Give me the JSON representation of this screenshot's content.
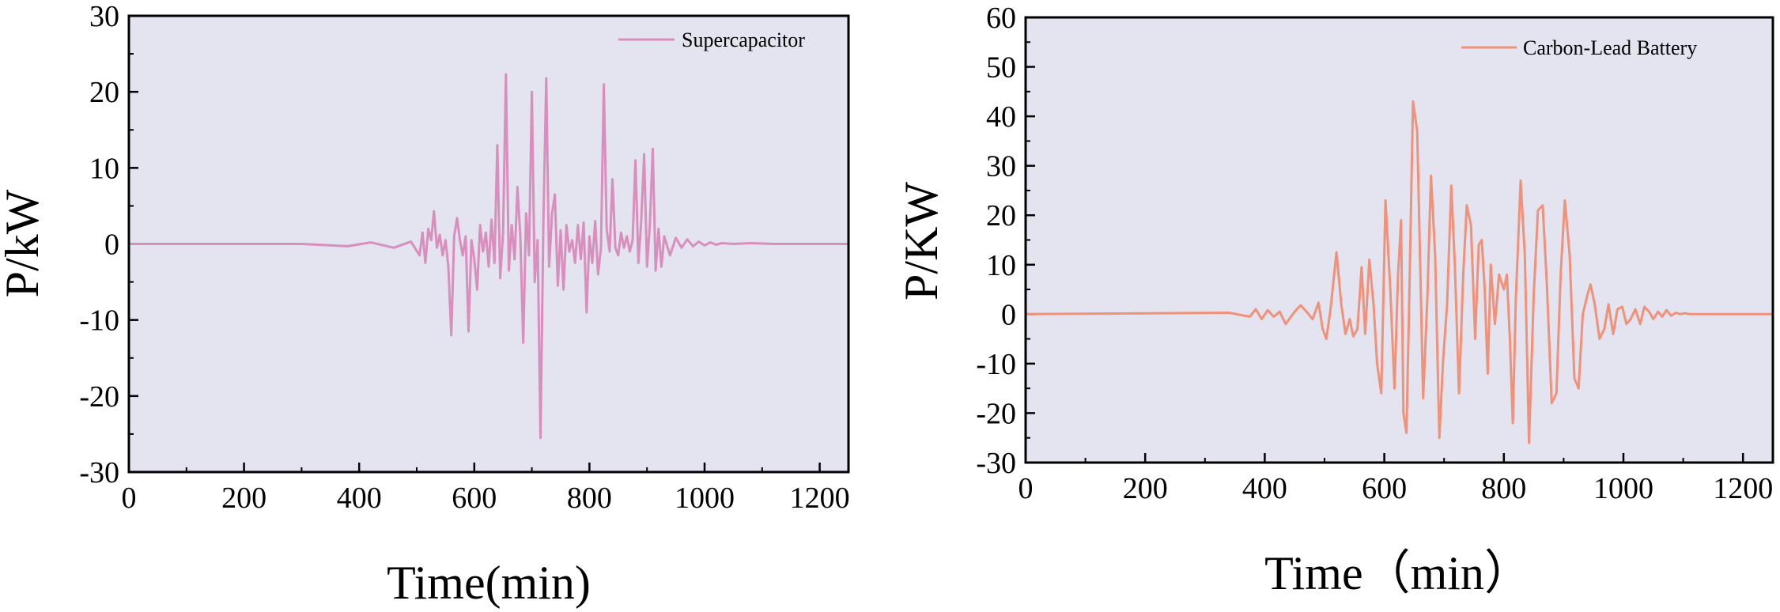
{
  "chart_data": [
    {
      "type": "line",
      "xlabel": "Time(min)",
      "ylabel": "P/kW",
      "xlim": [
        0,
        1250
      ],
      "ylim": [
        -30,
        30
      ],
      "xticks": [
        0,
        200,
        400,
        600,
        800,
        1000,
        1200
      ],
      "yticks": [
        -30,
        -20,
        -10,
        0,
        10,
        20,
        30
      ],
      "background": "#e3e4f0",
      "series": [
        {
          "name": "Supercapacitor",
          "color": "#d98fbd",
          "x": [
            0,
            300,
            380,
            420,
            460,
            490,
            505,
            510,
            515,
            520,
            525,
            530,
            535,
            540,
            545,
            550,
            555,
            560,
            565,
            570,
            575,
            580,
            585,
            590,
            595,
            600,
            605,
            610,
            615,
            620,
            625,
            630,
            635,
            640,
            645,
            650,
            655,
            660,
            665,
            670,
            675,
            680,
            685,
            690,
            695,
            700,
            705,
            710,
            715,
            720,
            725,
            730,
            735,
            740,
            745,
            750,
            755,
            760,
            765,
            770,
            775,
            780,
            785,
            790,
            795,
            800,
            805,
            810,
            815,
            820,
            825,
            830,
            835,
            840,
            845,
            850,
            855,
            860,
            865,
            870,
            875,
            880,
            885,
            890,
            895,
            900,
            905,
            910,
            915,
            920,
            925,
            930,
            940,
            950,
            960,
            970,
            980,
            990,
            1000,
            1010,
            1020,
            1030,
            1050,
            1080,
            1120,
            1160,
            1200,
            1250
          ],
          "y": [
            0,
            0,
            -0.3,
            0.2,
            -0.5,
            0.3,
            -1.5,
            1.5,
            -2.5,
            2,
            0.5,
            4.3,
            -0.5,
            1.2,
            -1.5,
            0.5,
            -3,
            -12,
            1,
            3.4,
            0.5,
            -1.5,
            1,
            -11.5,
            0.5,
            -2,
            -6,
            2.5,
            -1,
            1.5,
            -3,
            3.2,
            -2.5,
            13,
            -4.5,
            1.5,
            22.3,
            -3.5,
            2.5,
            -2,
            7.5,
            1,
            -13,
            4,
            -1.5,
            20,
            -5,
            0.5,
            -25.5,
            3,
            21.8,
            -3,
            4,
            6.5,
            -5.5,
            1.8,
            -6,
            2.5,
            -1,
            0.5,
            -2.5,
            2.5,
            -2,
            2.8,
            -9,
            1,
            -2.5,
            3,
            -4,
            -0.5,
            21,
            2,
            -1,
            8.5,
            -0.5,
            -1.5,
            1.5,
            -0.5,
            1,
            -1,
            0.5,
            11,
            -2.5,
            3,
            11.8,
            -3,
            2.5,
            12.5,
            -3.5,
            2,
            -3,
            1,
            -1.5,
            0.8,
            -0.5,
            0.6,
            -0.3,
            0.3,
            -0.2,
            0.2,
            -0.1,
            0.1,
            0,
            0.1,
            0,
            0,
            0,
            0
          ]
        }
      ]
    },
    {
      "type": "line",
      "xlabel": "Time（min）",
      "ylabel": "P/KW",
      "xlim": [
        0,
        1250
      ],
      "ylim": [
        -30,
        60
      ],
      "xticks": [
        0,
        200,
        400,
        600,
        800,
        1000,
        1200
      ],
      "yticks": [
        -30,
        -20,
        -10,
        0,
        10,
        20,
        30,
        40,
        50,
        60
      ],
      "background": "#e3e4f0",
      "series": [
        {
          "name": "Carbon-Lead Battery",
          "color": "#f0917a",
          "x": [
            0,
            340,
            375,
            385,
            395,
            405,
            415,
            425,
            435,
            450,
            460,
            470,
            480,
            490,
            497,
            503,
            510,
            520,
            528,
            535,
            542,
            548,
            555,
            562,
            568,
            575,
            582,
            588,
            595,
            602,
            610,
            617,
            623,
            628,
            632,
            637,
            642,
            648,
            655,
            660,
            665,
            672,
            678,
            685,
            692,
            698,
            705,
            712,
            718,
            725,
            732,
            738,
            745,
            752,
            758,
            763,
            768,
            773,
            778,
            785,
            792,
            800,
            805,
            810,
            815,
            820,
            828,
            835,
            842,
            850,
            857,
            865,
            872,
            880,
            888,
            895,
            902,
            910,
            918,
            925,
            932,
            940,
            945,
            952,
            960,
            968,
            975,
            983,
            990,
            998,
            1005,
            1012,
            1020,
            1028,
            1035,
            1043,
            1050,
            1058,
            1065,
            1072,
            1080,
            1088,
            1095,
            1103,
            1110,
            1120,
            1130,
            1150,
            1200,
            1250
          ],
          "y": [
            0,
            0.3,
            -0.5,
            1,
            -1,
            0.8,
            -0.5,
            0.5,
            -2,
            0.5,
            1.8,
            0.5,
            -1,
            2.3,
            -3,
            -5,
            1,
            12.5,
            2,
            -4,
            -1,
            -4.5,
            -3,
            9.5,
            -4,
            11,
            2,
            -10,
            -16,
            23,
            5,
            -15,
            8,
            19,
            -20,
            -24,
            5,
            43,
            37,
            10,
            -17,
            3,
            28,
            12,
            -25,
            -10,
            2,
            26,
            10,
            -16,
            8,
            22,
            18,
            -5,
            14,
            15,
            5,
            -12,
            10,
            -2,
            8,
            5,
            8,
            -5,
            -22,
            3,
            27,
            12,
            -26,
            4,
            21,
            22,
            6,
            -18,
            -16,
            8,
            23,
            12,
            -13,
            -15,
            0,
            4,
            6,
            2,
            -5,
            -3,
            2,
            -4,
            1,
            1.5,
            -2,
            -1,
            1,
            -2,
            1.5,
            0.5,
            -1,
            0.5,
            -0.5,
            0.8,
            -0.3,
            0.3,
            0,
            0.2,
            0,
            0,
            0,
            0,
            0,
            0
          ]
        }
      ]
    }
  ]
}
